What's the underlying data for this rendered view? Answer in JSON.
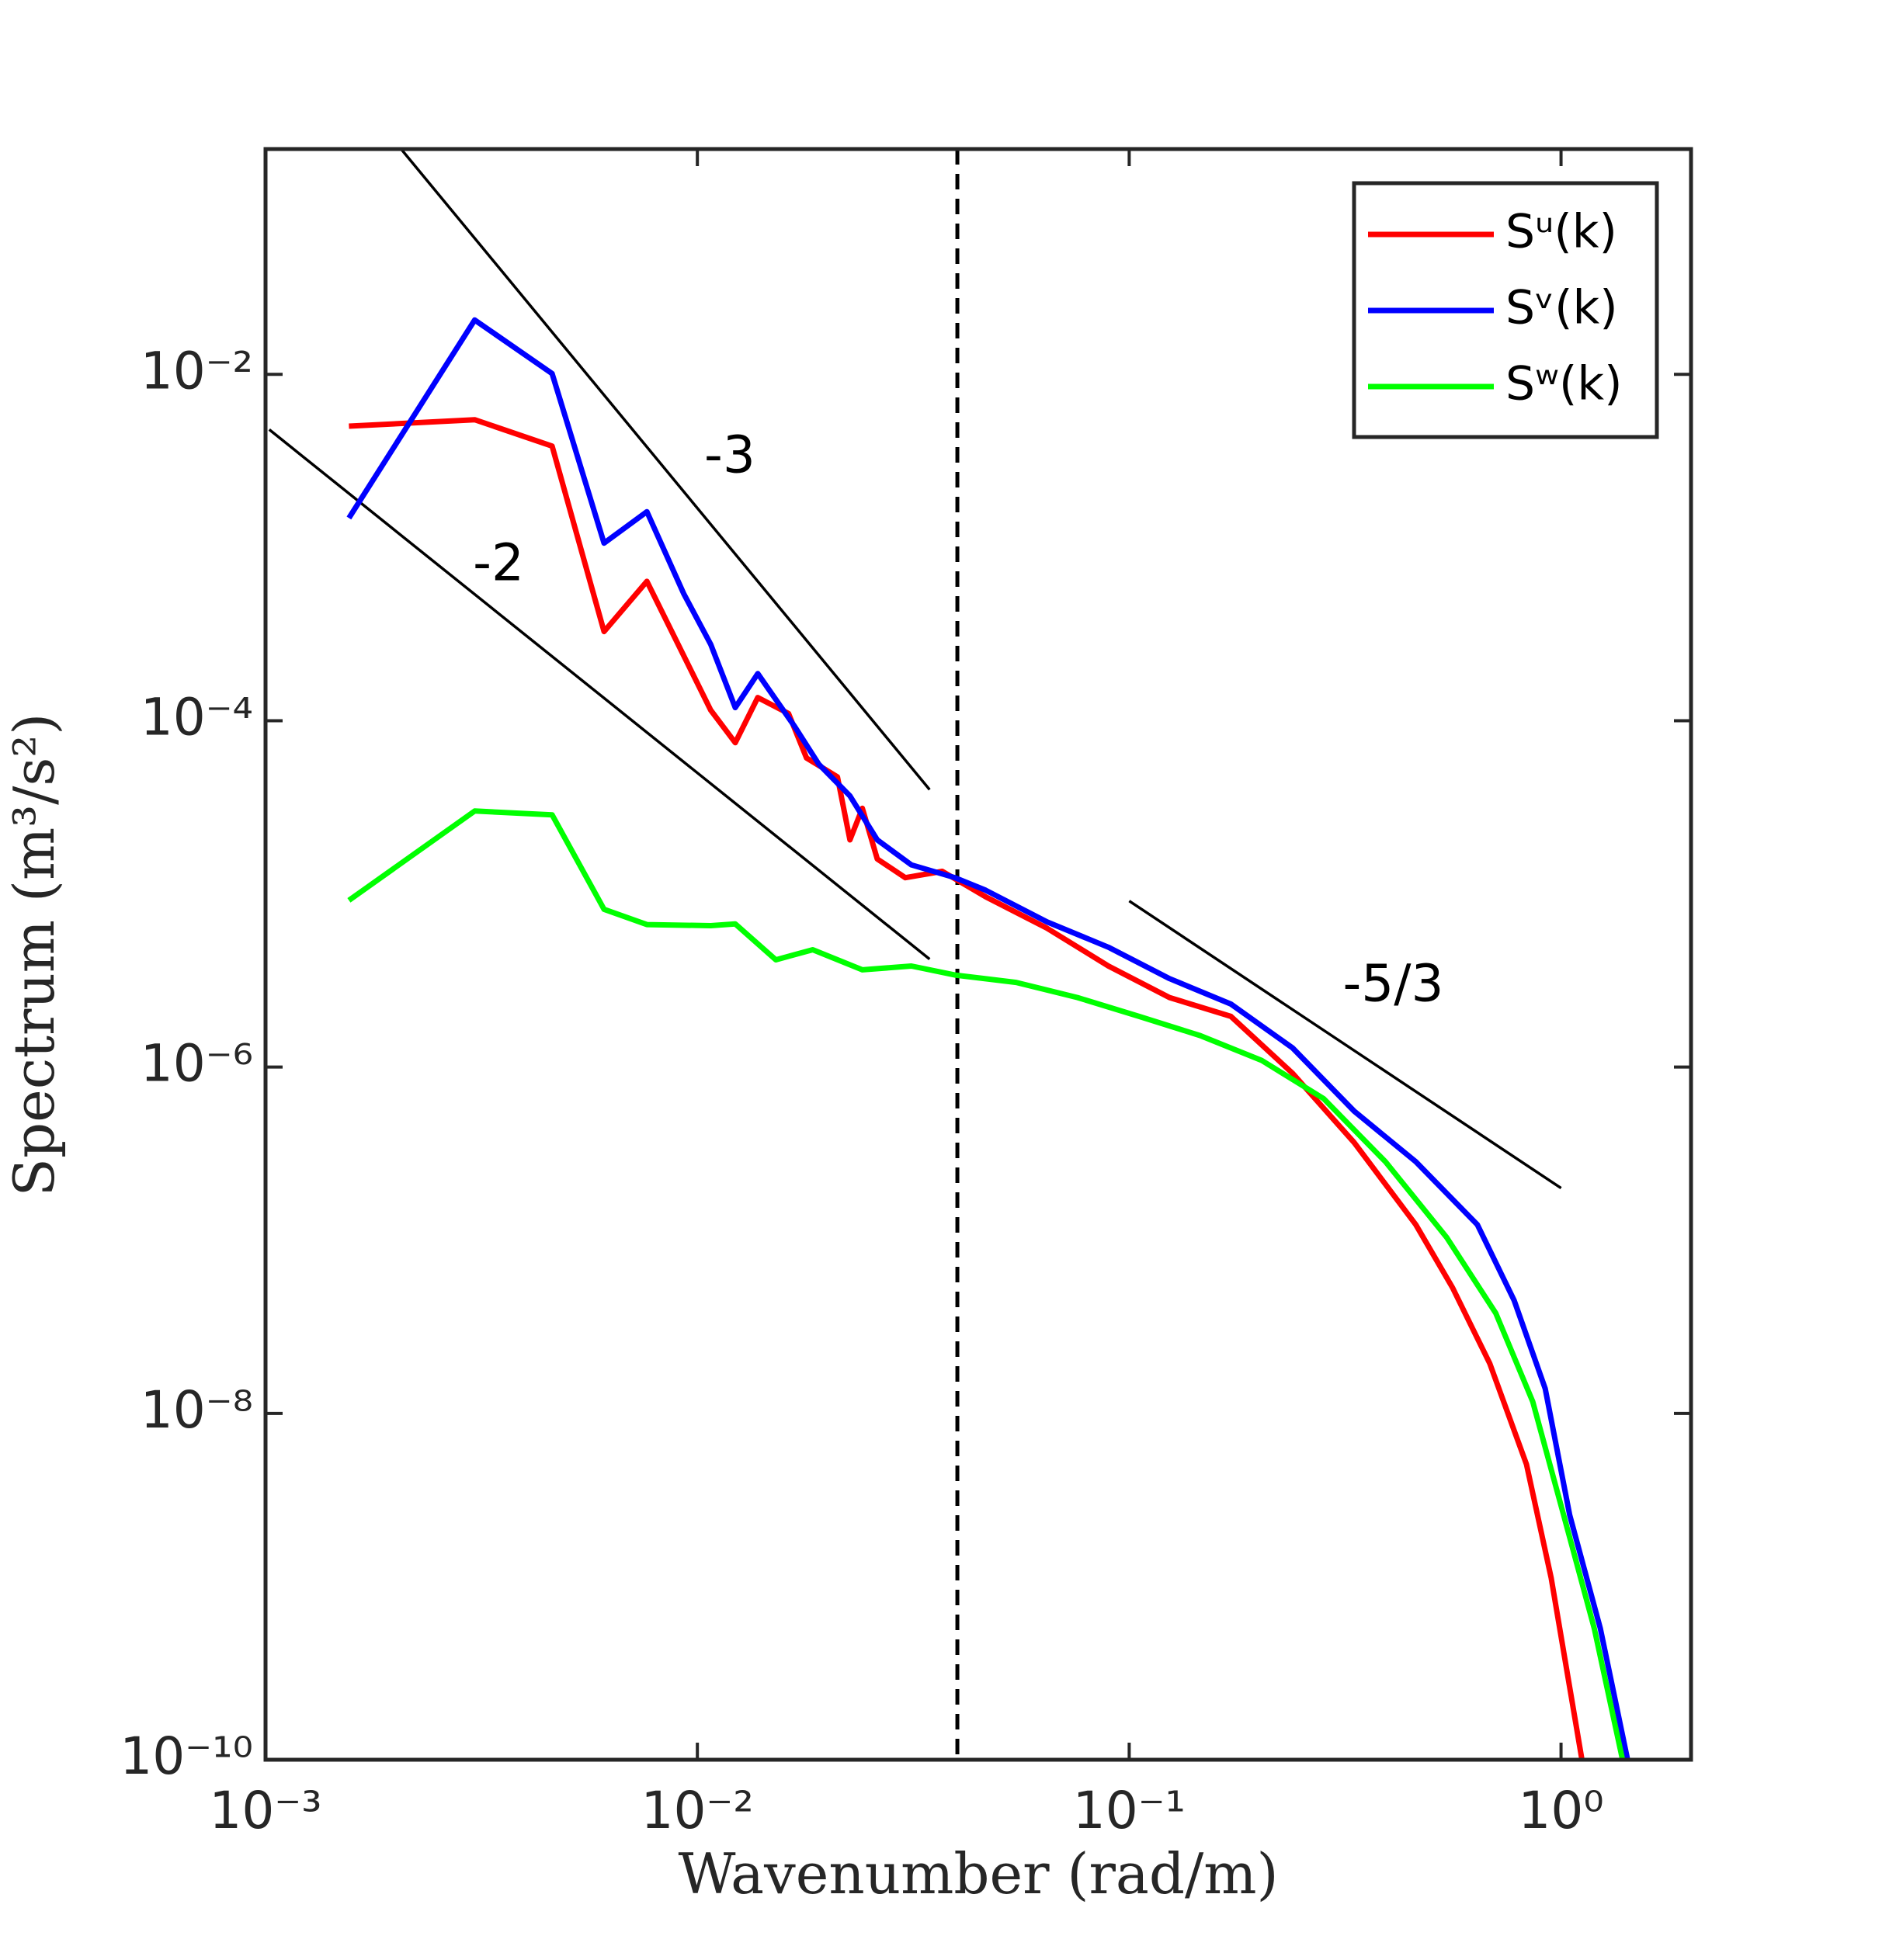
{
  "chart_data": {
    "type": "line",
    "xlabel": "Wavenumber (rad/m)",
    "ylabel": "Spectrum (m³/s²)",
    "xscale": "log",
    "yscale": "log",
    "xlim": [
      0.001,
      2
    ],
    "ylim": [
      1e-10,
      0.2
    ],
    "xticks": [
      {
        "value": 0.001,
        "label": "10⁻³"
      },
      {
        "value": 0.01,
        "label": "10⁻²"
      },
      {
        "value": 0.1,
        "label": "10⁻¹"
      },
      {
        "value": 1,
        "label": "10⁰"
      }
    ],
    "yticks": [
      {
        "value": 1e-10,
        "label": "10⁻¹⁰"
      },
      {
        "value": 1e-08,
        "label": "10⁻⁸"
      },
      {
        "value": 1e-06,
        "label": "10⁻⁶"
      },
      {
        "value": 0.0001,
        "label": "10⁻⁴"
      },
      {
        "value": 0.01,
        "label": "10⁻²"
      }
    ],
    "grid": false,
    "legend": "upper right",
    "vline": 0.04,
    "series": [
      {
        "name": "Sᵘ(k)",
        "color": "#ff0000",
        "x": [
          0.00156,
          0.00305,
          0.00461,
          0.00608,
          0.00764,
          0.01074,
          0.01224,
          0.0138,
          0.01626,
          0.0179,
          0.0211,
          0.02256,
          0.0241,
          0.0261,
          0.0303,
          0.0369,
          0.0465,
          0.0645,
          0.0895,
          0.124,
          0.172,
          0.239,
          0.332,
          0.461,
          0.561,
          0.684,
          0.832,
          0.949,
          1.118
        ],
        "values": [
          0.00502,
          0.00547,
          0.00385,
          0.000327,
          0.000638,
          0.000115,
          7.46e-05,
          0.000136,
          0.00011,
          6.09e-05,
          4.74e-05,
          2.05e-05,
          3.12e-05,
          1.59e-05,
          1.24e-05,
          1.35e-05,
          9.63e-06,
          6.33e-06,
          3.83e-06,
          2.52e-06,
          1.96e-06,
          9.2e-07,
          3.66e-07,
          1.23e-07,
          5.31e-08,
          1.94e-08,
          5.07e-09,
          1.12e-09,
          1e-10
        ]
      },
      {
        "name": "Sᵛ(k)",
        "color": "#0000ff",
        "x": [
          0.00156,
          0.00305,
          0.00461,
          0.00608,
          0.00764,
          0.0093,
          0.01074,
          0.01224,
          0.0138,
          0.01679,
          0.0191,
          0.02256,
          0.0261,
          0.0313,
          0.0395,
          0.0465,
          0.0645,
          0.0895,
          0.124,
          0.172,
          0.239,
          0.332,
          0.461,
          0.64,
          0.779,
          0.919,
          1.047,
          1.233,
          1.426
        ],
        "values": [
          0.00148,
          0.0206,
          0.0101,
          0.00106,
          0.00161,
          0.00054,
          0.000276,
          0.000119,
          0.000187,
          9.27e-05,
          5.61e-05,
          3.68e-05,
          2.05e-05,
          1.47e-05,
          1.24e-05,
          1.05e-05,
          6.89e-06,
          4.92e-06,
          3.24e-06,
          2.31e-06,
          1.29e-06,
          5.56e-07,
          2.84e-07,
          1.23e-07,
          4.49e-08,
          1.39e-08,
          2.59e-09,
          5.73e-10,
          1e-10
        ]
      },
      {
        "name": "Sʷ(k)",
        "color": "#00ff00",
        "x": [
          0.00156,
          0.00305,
          0.00461,
          0.00608,
          0.00764,
          0.01074,
          0.01224,
          0.0152,
          0.0185,
          0.0241,
          0.0313,
          0.0395,
          0.0547,
          0.0759,
          0.1054,
          0.146,
          0.203,
          0.282,
          0.392,
          0.543,
          0.706,
          0.86,
          1.014,
          1.194,
          1.388
        ],
        "values": [
          9.17e-06,
          3.01e-05,
          2.86e-05,
          8.15e-06,
          6.65e-06,
          6.55e-06,
          6.7e-06,
          4.16e-06,
          4.76e-06,
          3.64e-06,
          3.83e-06,
          3.4e-06,
          3.08e-06,
          2.52e-06,
          1.96e-06,
          1.52e-06,
          1.09e-06,
          6.57e-07,
          2.84e-07,
          1.04e-07,
          3.79e-08,
          1.17e-08,
          2.59e-09,
          5.73e-10,
          1e-10
        ]
      }
    ],
    "lines": [
      {
        "label": "-3",
        "x": [
          0.00206,
          0.0345
        ],
        "y": [
          0.2,
          4e-05
        ]
      },
      {
        "label": "-2",
        "x": [
          0.00102,
          0.0345
        ],
        "y": [
          0.0048,
          4.2e-06
        ]
      },
      {
        "label": "-5/3",
        "x": [
          0.1,
          1
        ],
        "y": [
          9.1e-06,
          2e-07
        ]
      }
    ]
  }
}
